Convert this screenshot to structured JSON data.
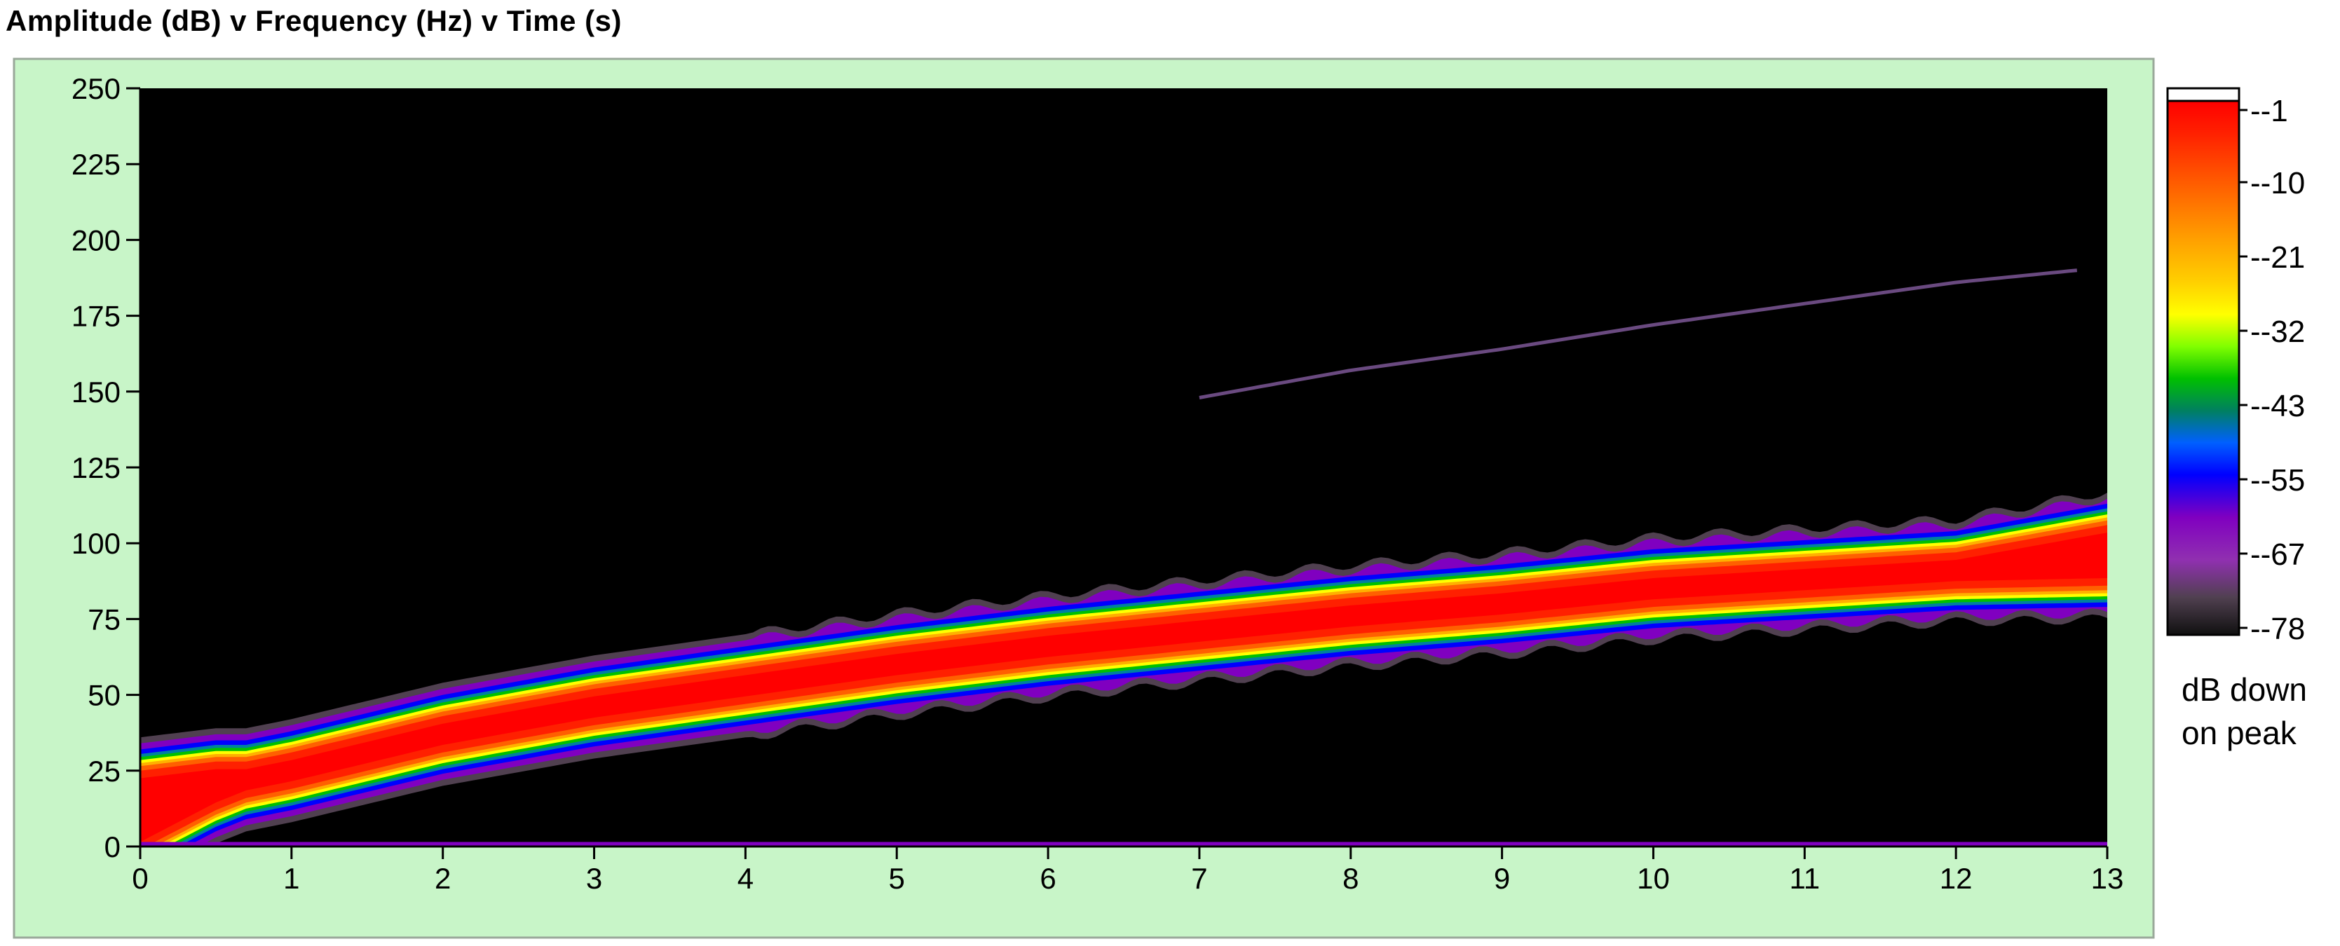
{
  "chart_data": {
    "type": "heatmap",
    "title": "Amplitude (dB) v Frequency (Hz) v Time (s)",
    "xlabel": "",
    "ylabel": "",
    "xlim": [
      0,
      13
    ],
    "ylim": [
      0,
      250
    ],
    "x_ticks": [
      "0",
      "1",
      "2",
      "3",
      "4",
      "5",
      "6",
      "7",
      "8",
      "9",
      "10",
      "11",
      "12",
      "13"
    ],
    "y_ticks": [
      "0",
      "25",
      "50",
      "75",
      "100",
      "125",
      "150",
      "175",
      "200",
      "225",
      "250"
    ],
    "grid": false,
    "colorbar": {
      "labels": [
        "-1",
        "-10",
        "-21",
        "-32",
        "-43",
        "-55",
        "-67",
        "-78"
      ],
      "caption": [
        "dB down",
        "on peak"
      ]
    },
    "series": [
      {
        "x": [
          0,
          0.5,
          1,
          2,
          3,
          4,
          5,
          6,
          7,
          8,
          9,
          10,
          11,
          12,
          13
        ],
        "y": [
          12,
          20,
          25,
          37,
          46,
          53,
          60,
          66,
          71,
          76,
          80,
          85,
          88,
          91,
          96
        ]
      },
      {
        "x": [
          7,
          8,
          9,
          10,
          11,
          12,
          12.8
        ],
        "y": [
          148,
          157,
          164,
          172,
          179,
          186,
          190
        ]
      }
    ],
    "colors": {
      "panel_bg": "#c8f5c8",
      "plot_bg": "#000000",
      "palette": [
        "#ffffff",
        "#ff0000",
        "#ff4000",
        "#ff8000",
        "#ffc000",
        "#ffff00",
        "#80ff00",
        "#00c000",
        "#008040",
        "#0040ff",
        "#0000ff",
        "#8000c0",
        "#a020c0",
        "#604060",
        "#101010"
      ]
    }
  }
}
